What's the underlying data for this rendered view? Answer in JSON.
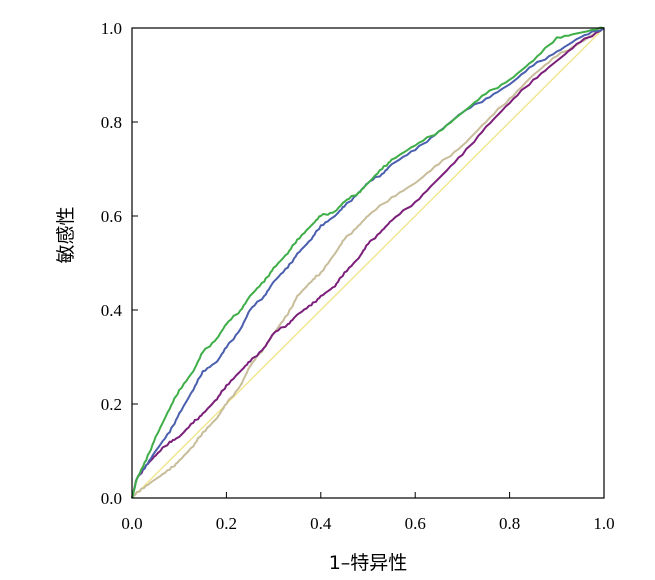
{
  "chart_data": {
    "type": "line",
    "xlabel": "1–特异性",
    "ylabel": "敏感性",
    "xlim": [
      0,
      1
    ],
    "ylim": [
      0,
      1
    ],
    "x_ticks": [
      "0.0",
      "0.2",
      "0.4",
      "0.6",
      "0.8",
      "1.0"
    ],
    "y_ticks": [
      "0.0",
      "0.2",
      "0.4",
      "0.6",
      "0.8",
      "1.0"
    ],
    "grid": false,
    "legend": "none",
    "series": [
      {
        "color": "#f0e68c",
        "style": "reference-diagonal",
        "points": [
          [
            0,
            0
          ],
          [
            1,
            1
          ]
        ]
      },
      {
        "color": "#c8bd9a",
        "points": [
          [
            0,
            0
          ],
          [
            0.02,
            0.02
          ],
          [
            0.05,
            0.04
          ],
          [
            0.08,
            0.06
          ],
          [
            0.1,
            0.08
          ],
          [
            0.13,
            0.11
          ],
          [
            0.15,
            0.14
          ],
          [
            0.18,
            0.17
          ],
          [
            0.2,
            0.2
          ],
          [
            0.23,
            0.24
          ],
          [
            0.25,
            0.28
          ],
          [
            0.28,
            0.32
          ],
          [
            0.3,
            0.35
          ],
          [
            0.33,
            0.39
          ],
          [
            0.35,
            0.43
          ],
          [
            0.38,
            0.46
          ],
          [
            0.4,
            0.48
          ],
          [
            0.43,
            0.52
          ],
          [
            0.45,
            0.55
          ],
          [
            0.48,
            0.58
          ],
          [
            0.5,
            0.6
          ],
          [
            0.55,
            0.64
          ],
          [
            0.6,
            0.67
          ],
          [
            0.65,
            0.71
          ],
          [
            0.7,
            0.75
          ],
          [
            0.75,
            0.8
          ],
          [
            0.8,
            0.85
          ],
          [
            0.85,
            0.9
          ],
          [
            0.9,
            0.94
          ],
          [
            0.95,
            0.97
          ],
          [
            1,
            1
          ]
        ]
      },
      {
        "color": "#7b1f7a",
        "points": [
          [
            0,
            0
          ],
          [
            0.01,
            0.04
          ],
          [
            0.03,
            0.07
          ],
          [
            0.05,
            0.09
          ],
          [
            0.08,
            0.12
          ],
          [
            0.1,
            0.13
          ],
          [
            0.13,
            0.16
          ],
          [
            0.15,
            0.18
          ],
          [
            0.18,
            0.21
          ],
          [
            0.2,
            0.24
          ],
          [
            0.23,
            0.27
          ],
          [
            0.25,
            0.29
          ],
          [
            0.28,
            0.32
          ],
          [
            0.3,
            0.35
          ],
          [
            0.33,
            0.37
          ],
          [
            0.35,
            0.39
          ],
          [
            0.38,
            0.41
          ],
          [
            0.4,
            0.43
          ],
          [
            0.43,
            0.45
          ],
          [
            0.45,
            0.48
          ],
          [
            0.48,
            0.51
          ],
          [
            0.5,
            0.54
          ],
          [
            0.53,
            0.57
          ],
          [
            0.55,
            0.59
          ],
          [
            0.6,
            0.63
          ],
          [
            0.65,
            0.68
          ],
          [
            0.7,
            0.73
          ],
          [
            0.75,
            0.79
          ],
          [
            0.8,
            0.84
          ],
          [
            0.85,
            0.89
          ],
          [
            0.9,
            0.93
          ],
          [
            0.95,
            0.97
          ],
          [
            1,
            1
          ]
        ]
      },
      {
        "color": "#4a5fae",
        "points": [
          [
            0,
            0
          ],
          [
            0.01,
            0.04
          ],
          [
            0.03,
            0.07
          ],
          [
            0.05,
            0.1
          ],
          [
            0.08,
            0.14
          ],
          [
            0.1,
            0.18
          ],
          [
            0.13,
            0.23
          ],
          [
            0.15,
            0.27
          ],
          [
            0.18,
            0.29
          ],
          [
            0.2,
            0.32
          ],
          [
            0.23,
            0.36
          ],
          [
            0.25,
            0.4
          ],
          [
            0.28,
            0.43
          ],
          [
            0.3,
            0.46
          ],
          [
            0.33,
            0.49
          ],
          [
            0.35,
            0.52
          ],
          [
            0.38,
            0.55
          ],
          [
            0.4,
            0.58
          ],
          [
            0.43,
            0.6
          ],
          [
            0.45,
            0.62
          ],
          [
            0.48,
            0.65
          ],
          [
            0.5,
            0.67
          ],
          [
            0.53,
            0.69
          ],
          [
            0.55,
            0.71
          ],
          [
            0.6,
            0.74
          ],
          [
            0.65,
            0.78
          ],
          [
            0.7,
            0.82
          ],
          [
            0.75,
            0.85
          ],
          [
            0.8,
            0.88
          ],
          [
            0.85,
            0.92
          ],
          [
            0.9,
            0.95
          ],
          [
            0.95,
            0.98
          ],
          [
            1,
            1
          ]
        ]
      },
      {
        "color": "#3fae48",
        "points": [
          [
            0,
            0
          ],
          [
            0.01,
            0.04
          ],
          [
            0.03,
            0.08
          ],
          [
            0.05,
            0.13
          ],
          [
            0.08,
            0.19
          ],
          [
            0.1,
            0.23
          ],
          [
            0.13,
            0.27
          ],
          [
            0.15,
            0.31
          ],
          [
            0.18,
            0.34
          ],
          [
            0.2,
            0.37
          ],
          [
            0.23,
            0.4
          ],
          [
            0.25,
            0.43
          ],
          [
            0.28,
            0.46
          ],
          [
            0.3,
            0.49
          ],
          [
            0.33,
            0.52
          ],
          [
            0.35,
            0.55
          ],
          [
            0.38,
            0.58
          ],
          [
            0.4,
            0.6
          ],
          [
            0.43,
            0.61
          ],
          [
            0.45,
            0.63
          ],
          [
            0.48,
            0.65
          ],
          [
            0.5,
            0.67
          ],
          [
            0.53,
            0.7
          ],
          [
            0.55,
            0.72
          ],
          [
            0.6,
            0.75
          ],
          [
            0.65,
            0.78
          ],
          [
            0.7,
            0.82
          ],
          [
            0.75,
            0.86
          ],
          [
            0.8,
            0.89
          ],
          [
            0.85,
            0.93
          ],
          [
            0.9,
            0.98
          ],
          [
            0.95,
            0.99
          ],
          [
            1,
            1
          ]
        ]
      }
    ]
  }
}
